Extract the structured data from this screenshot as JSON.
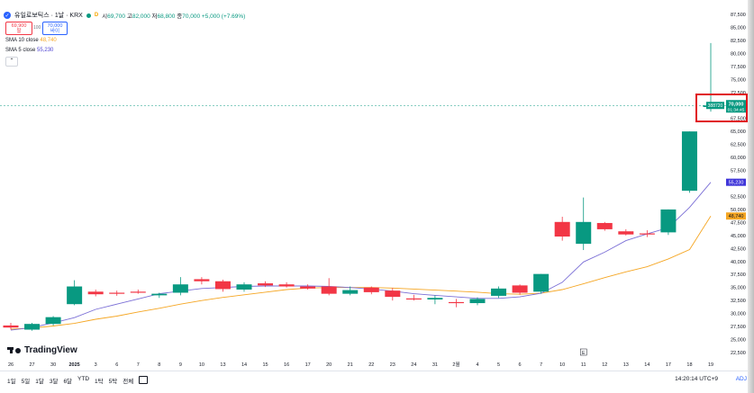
{
  "header": {
    "symbol": "유일로보틱스 · 1날 · KRX",
    "ohlc": {
      "open_k": "시",
      "open": "69,700",
      "high_k": "고",
      "high": "82,000",
      "low_k": "저",
      "low": "68,800",
      "close_k": "종",
      "close": "70,000",
      "change": "+5,000 (+7.69%)"
    },
    "sell_price": "69,900",
    "sell_label": "팔",
    "buy_price": "70,000",
    "buy_label": "바이",
    "spread": "100",
    "d_badge": "D"
  },
  "indicators": [
    {
      "label": "SMA 10 close",
      "value": "48,740",
      "color": "#f5a623"
    },
    {
      "label": "SMA 5 close",
      "value": "55,230",
      "color": "#4a3fd1"
    }
  ],
  "collapse_glyph": "⌃",
  "logo_text": "TradingView",
  "bottom": {
    "periods": [
      "1일",
      "5일",
      "1달",
      "3달",
      "6달",
      "YTD",
      "1탁",
      "5탁",
      "전체"
    ],
    "clock": "14:20:14 UTC+9",
    "adj": "ADJ"
  },
  "colors": {
    "up": "#089981",
    "down": "#f23645",
    "sma10": "#f5a623",
    "sma5": "#7b6fd6"
  },
  "chart_data": {
    "type": "candlestick",
    "yaxis_ticks": [
      87500,
      85000,
      82500,
      80000,
      77500,
      75000,
      72500,
      70000,
      67500,
      65000,
      62500,
      60000,
      57500,
      55000,
      52500,
      50000,
      47500,
      45000,
      42500,
      40000,
      37500,
      35000,
      32500,
      30000,
      27500,
      25000,
      22500
    ],
    "ylim": [
      22500,
      87500
    ],
    "xaxis_ticks": [
      "26",
      "27",
      "30",
      "2025",
      "3",
      "6",
      "7",
      "8",
      "9",
      "10",
      "13",
      "14",
      "15",
      "16",
      "17",
      "20",
      "21",
      "22",
      "23",
      "24",
      "31",
      "2월",
      "4",
      "5",
      "6",
      "7",
      "10",
      "11",
      "12",
      "13",
      "14",
      "17",
      "18",
      "19"
    ],
    "candles": [
      {
        "x": "26",
        "o": 27700,
        "h": 28200,
        "l": 26900,
        "c": 27300
      },
      {
        "x": "27",
        "o": 26900,
        "h": 28200,
        "l": 26700,
        "c": 28000
      },
      {
        "x": "30",
        "o": 28000,
        "h": 29500,
        "l": 27700,
        "c": 29300
      },
      {
        "x": "2025",
        "o": 31800,
        "h": 36400,
        "l": 31600,
        "c": 35200
      },
      {
        "x": "3",
        "o": 34200,
        "h": 34600,
        "l": 33300,
        "c": 33700
      },
      {
        "x": "6",
        "o": 34000,
        "h": 34400,
        "l": 33400,
        "c": 33800
      },
      {
        "x": "7",
        "o": 34200,
        "h": 34600,
        "l": 33800,
        "c": 34000
      },
      {
        "x": "8",
        "o": 33500,
        "h": 34000,
        "l": 33000,
        "c": 33800
      },
      {
        "x": "9",
        "o": 34000,
        "h": 37000,
        "l": 33500,
        "c": 35600
      },
      {
        "x": "10",
        "o": 36600,
        "h": 37000,
        "l": 35600,
        "c": 36200
      },
      {
        "x": "13",
        "o": 36200,
        "h": 36500,
        "l": 34200,
        "c": 34700
      },
      {
        "x": "14",
        "o": 34600,
        "h": 36000,
        "l": 34200,
        "c": 35600
      },
      {
        "x": "15",
        "o": 35800,
        "h": 36200,
        "l": 35100,
        "c": 35400
      },
      {
        "x": "16",
        "o": 35600,
        "h": 36000,
        "l": 35000,
        "c": 35200
      },
      {
        "x": "17",
        "o": 35200,
        "h": 35600,
        "l": 34600,
        "c": 34800
      },
      {
        "x": "20",
        "o": 35200,
        "h": 36800,
        "l": 33500,
        "c": 33800
      },
      {
        "x": "21",
        "o": 33800,
        "h": 35200,
        "l": 33500,
        "c": 34500
      },
      {
        "x": "22",
        "o": 35000,
        "h": 35200,
        "l": 33700,
        "c": 34100
      },
      {
        "x": "23",
        "o": 34400,
        "h": 34900,
        "l": 32500,
        "c": 33200
      },
      {
        "x": "24",
        "o": 32900,
        "h": 33600,
        "l": 32500,
        "c": 32700
      },
      {
        "x": "31",
        "o": 32700,
        "h": 33500,
        "l": 31800,
        "c": 33000
      },
      {
        "x": "2월",
        "o": 32200,
        "h": 32800,
        "l": 31200,
        "c": 32100
      },
      {
        "x": "4",
        "o": 32000,
        "h": 33100,
        "l": 31600,
        "c": 32800
      },
      {
        "x": "5",
        "o": 33400,
        "h": 35200,
        "l": 33000,
        "c": 34800
      },
      {
        "x": "6",
        "o": 35400,
        "h": 35600,
        "l": 33600,
        "c": 34000
      },
      {
        "x": "7",
        "o": 34200,
        "h": 37600,
        "l": 33800,
        "c": 37600
      },
      {
        "x": "10",
        "o": 47600,
        "h": 48600,
        "l": 44000,
        "c": 44800
      },
      {
        "x": "11",
        "o": 43400,
        "h": 52300,
        "l": 42200,
        "c": 47600
      },
      {
        "x": "12",
        "o": 47400,
        "h": 47600,
        "l": 45900,
        "c": 46200
      },
      {
        "x": "13",
        "o": 45800,
        "h": 46200,
        "l": 45000,
        "c": 45200
      },
      {
        "x": "14",
        "o": 45400,
        "h": 46000,
        "l": 44700,
        "c": 45200
      },
      {
        "x": "17",
        "o": 45600,
        "h": 50000,
        "l": 45100,
        "c": 50000
      },
      {
        "x": "18",
        "o": 53600,
        "h": 65000,
        "l": 53200,
        "c": 65000
      },
      {
        "x": "19",
        "o": 69700,
        "h": 82000,
        "l": 68800,
        "c": 70000
      }
    ],
    "series": [
      {
        "name": "SMA 10 close",
        "values": [
          27000,
          27200,
          27600,
          28100,
          28900,
          29500,
          30300,
          31000,
          31800,
          32500,
          33100,
          33600,
          34100,
          34600,
          34900,
          35000,
          35000,
          35000,
          34900,
          34700,
          34500,
          34300,
          34100,
          33800,
          33700,
          33900,
          34600,
          35700,
          36900,
          38000,
          39000,
          40500,
          42300,
          48740
        ]
      },
      {
        "name": "SMA 5 close",
        "values": [
          26800,
          27300,
          28200,
          29200,
          30800,
          31800,
          32800,
          33800,
          34300,
          34800,
          35000,
          35200,
          35300,
          35300,
          35300,
          35200,
          35000,
          34700,
          34300,
          33800,
          33500,
          33200,
          32900,
          32900,
          33200,
          33900,
          36000,
          39900,
          41800,
          44000,
          45300,
          46500,
          50400,
          55230
        ]
      }
    ],
    "last_price_label": "70,000",
    "last_price_countdown": "01:34:45",
    "volume_label": "388720",
    "sma10_label": "48,740",
    "sma5_label": "55,230",
    "grid": false,
    "legend": "top-left",
    "crosshair_label": "E"
  }
}
